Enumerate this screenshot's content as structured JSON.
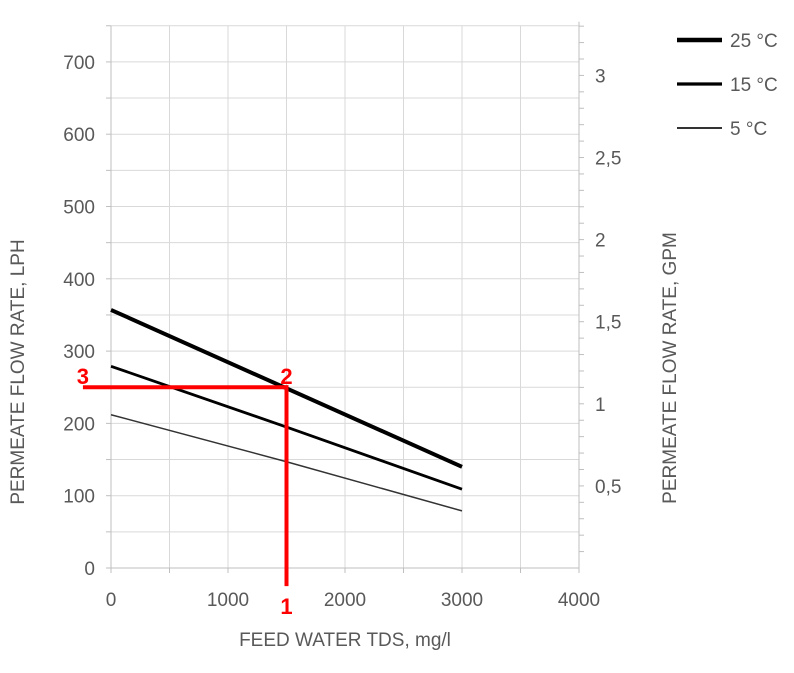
{
  "chart_data": {
    "type": "line",
    "title": "",
    "xlabel": "FEED WATER TDS, mg/l",
    "ylabel": "PERMEATE FLOW RATE, LPH",
    "y2label": "PERMEATE FLOW RATE, GPM",
    "xlim": [
      0,
      4000
    ],
    "ylim": [
      0,
      750
    ],
    "y2lim": [
      0,
      3.3
    ],
    "lph_per_gpm": 227.1,
    "xticks": [
      0,
      1000,
      2000,
      3000,
      4000
    ],
    "xtick_labels": [
      "0",
      "1000",
      "2000",
      "3000",
      "4000"
    ],
    "yticks": [
      0,
      100,
      200,
      300,
      400,
      500,
      600,
      700
    ],
    "ytick_labels": [
      "0",
      "100",
      "200",
      "300",
      "400",
      "500",
      "600",
      "700"
    ],
    "y2ticks": [
      0.5,
      1,
      1.5,
      2,
      2.5,
      3
    ],
    "y2tick_labels": [
      "0,5",
      "1",
      "1,5",
      "2",
      "2,5",
      "3"
    ],
    "grid": true,
    "legend_position": "top-right",
    "series": [
      {
        "name": "25 °C",
        "x": [
          0,
          3000
        ],
        "y": [
          357,
          140
        ],
        "color": "#000000",
        "weight": "thick"
      },
      {
        "name": "15 °C",
        "x": [
          0,
          1500,
          3000
        ],
        "y": [
          279,
          195,
          109
        ],
        "color": "#000000",
        "weight": "medium"
      },
      {
        "name": "5 °C",
        "x": [
          0,
          1500,
          3000
        ],
        "y": [
          212,
          147,
          79
        ],
        "color": "#333333",
        "weight": "thin"
      }
    ],
    "annotations": {
      "color": "#ff0000",
      "vertical_line": {
        "x": 1500,
        "y_from": -25,
        "y_to": 250
      },
      "horizontal_line": {
        "y": 250,
        "x_from": -240,
        "x_to": 1500
      },
      "labels": [
        {
          "text": "1",
          "x": 1500,
          "y": -50
        },
        {
          "text": "2",
          "x": 1500,
          "y": 268
        },
        {
          "text": "3",
          "x": -240,
          "y": 268
        }
      ]
    }
  }
}
